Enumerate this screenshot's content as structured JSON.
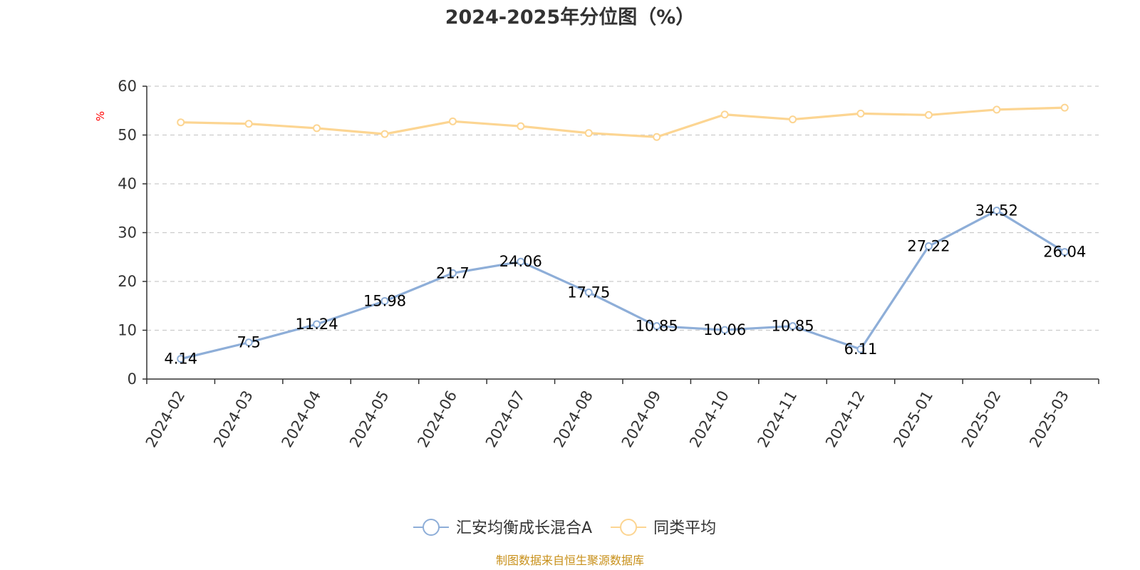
{
  "chart_data": {
    "type": "line",
    "title": "2024-2025年分位图（%）",
    "y_unit": "%",
    "ylim": [
      0,
      60
    ],
    "y_ticks": [
      "0",
      "10",
      "20",
      "30",
      "40",
      "50",
      "60"
    ],
    "grid": true,
    "legend_position": "bottom-center",
    "categories": [
      "2024-02",
      "2024-03",
      "2024-04",
      "2024-05",
      "2024-06",
      "2024-07",
      "2024-08",
      "2024-09",
      "2024-10",
      "2024-11",
      "2024-12",
      "2025-01",
      "2025-02",
      "2025-03"
    ],
    "series": [
      {
        "name": "汇安均衡成长混合A",
        "color": "#8eaed8",
        "show_labels": true,
        "values": [
          4.14,
          7.5,
          11.24,
          15.98,
          21.7,
          24.06,
          17.75,
          10.85,
          10.06,
          10.85,
          6.11,
          27.22,
          34.52,
          26.04
        ],
        "labels": [
          "4.14",
          "7.5",
          "11.24",
          "15.98",
          "21.7",
          "24.06",
          "17.75",
          "10.85",
          "10.06",
          "10.85",
          "6.11",
          "27.22",
          "34.52",
          "26.04"
        ]
      },
      {
        "name": "同类平均",
        "color": "#fcd592",
        "show_labels": false,
        "values": [
          52.6,
          52.3,
          51.4,
          50.2,
          52.8,
          51.8,
          50.4,
          49.6,
          54.2,
          53.2,
          54.4,
          54.1,
          55.2,
          55.6
        ]
      }
    ],
    "source": "制图数据来自恒生聚源数据库",
    "colors": {
      "axis": "#333333",
      "grid": "#cccccc",
      "unit": "#ff0000",
      "source": "#c8901a",
      "text": "#333333"
    }
  }
}
